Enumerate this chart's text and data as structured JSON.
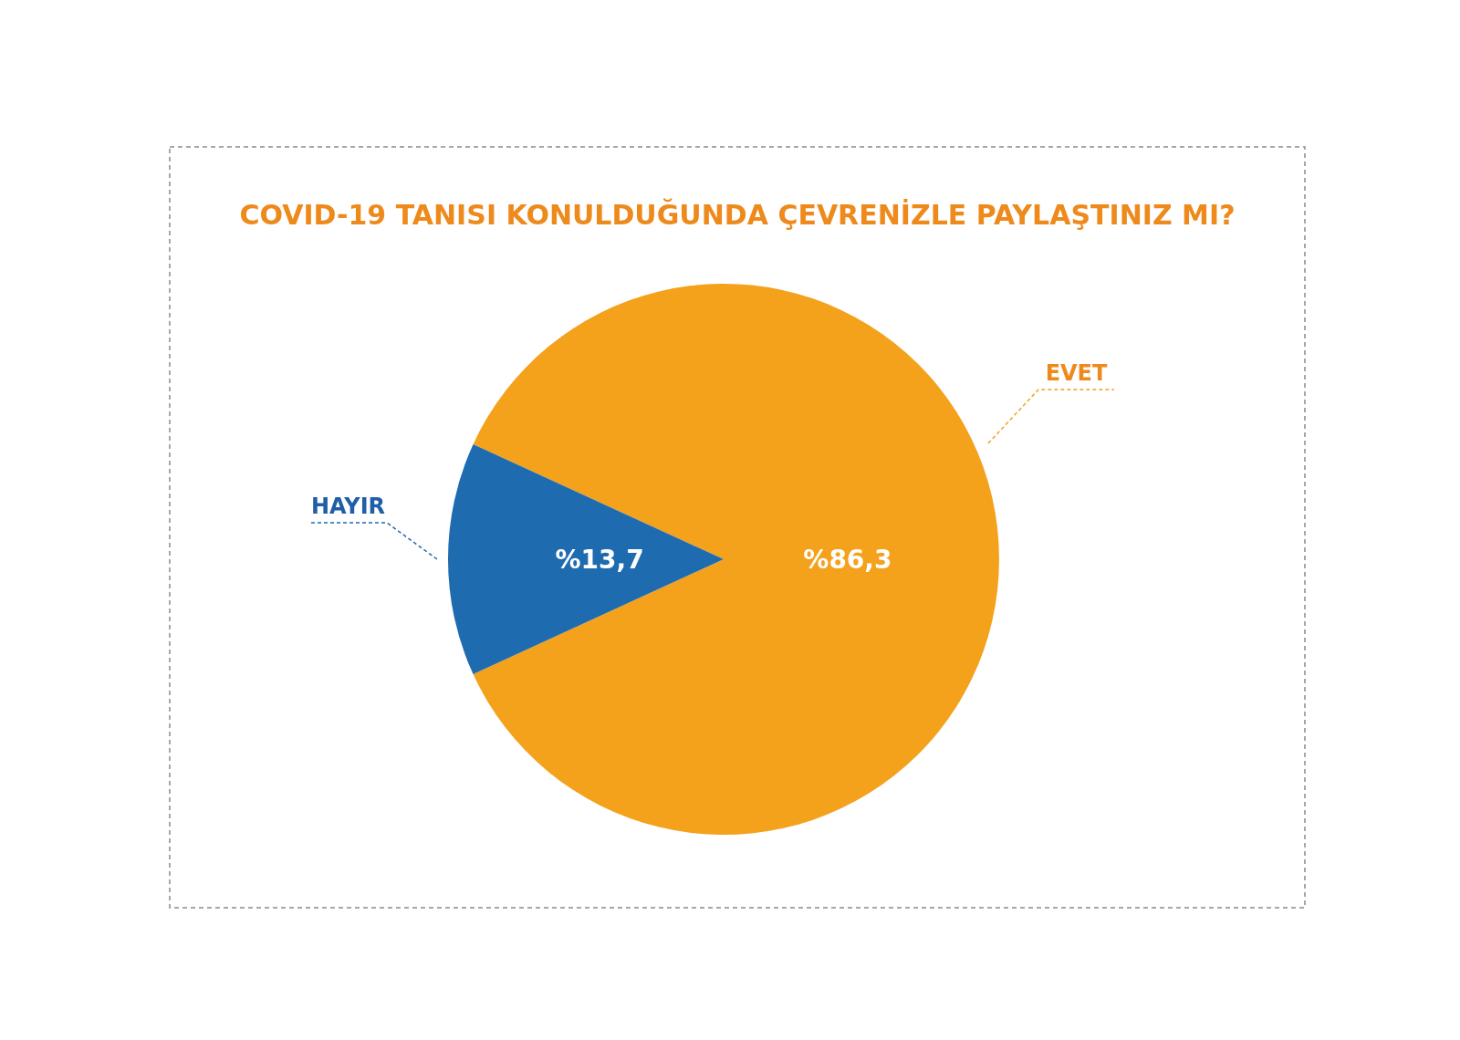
{
  "chart_data": {
    "type": "pie",
    "title": "COVID-19 TANISI KONULDUĞUNDA ÇEVRENİZLE PAYLAŞTINIZ MI?",
    "categories": [
      "EVET",
      "HAYIR"
    ],
    "values": [
      86.3,
      13.7
    ],
    "colors": [
      "#f4a11c",
      "#1f6bb0"
    ],
    "value_labels": [
      "%86,3",
      "%13,7"
    ]
  }
}
